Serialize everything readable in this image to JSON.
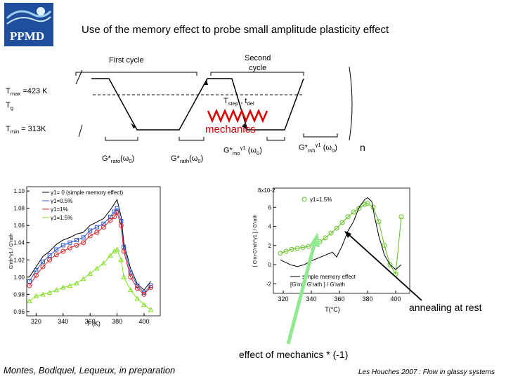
{
  "logo": {
    "text": "PPMD",
    "color": "#1f4e9c"
  },
  "slide_title": "Use of the memory effect to probe small amplitude plasticity effect",
  "protocol": {
    "first_cycle": "First  cycle",
    "second_cycle_1": "Second",
    "second_cycle_2": "cycle",
    "tmax": {
      "pre": "T",
      "sub": "max",
      "post": " =423 K"
    },
    "tg": {
      "pre": "T",
      "sub": "g"
    },
    "tmin": {
      "pre": "T",
      "sub": "min",
      "post": " = 313K"
    },
    "tstep": {
      "pre": "T",
      "sub": "step",
      "mid": " , t",
      "sub2": "del"
    },
    "mechanics": "mechanics",
    "g_rato": {
      "pre": "G*",
      "sub": "rato",
      "post": "(ω",
      "sub2": "0",
      "post2": ")"
    },
    "g_rath": {
      "pre": "G*",
      "sub": "rath",
      "post": "(ω",
      "sub2": "0",
      "post2": ")"
    },
    "g_mo": {
      "pre": "G*",
      "sub": "mo",
      "sup": "γ1",
      "post": " (ω",
      "sub2": "0",
      "post2": ")"
    },
    "g_mh": {
      "pre": "G*",
      "sub": "mh",
      "sup": "γ1",
      "post": " (ω",
      "sub2": "0",
      "post2": ")"
    },
    "n_label": "n"
  },
  "annotations": {
    "annealing": "annealing at rest",
    "effect": "effect of mechanics * (-1)",
    "authors": "Montes, Bodiquel, Lequeux, in preparation",
    "conference": "Les Houches 2007 : Flow in glassy systems"
  },
  "colors": {
    "mechanics": "#d80000",
    "arrow_green": "#90e890",
    "series_black": "#000000",
    "series_blue": "#2a55d0",
    "series_red": "#d82020",
    "series_green": "#80e020"
  },
  "chart_data": [
    {
      "type": "line",
      "xlabel": "T (K)",
      "ylabel": "G'rth^γ1 / G'rath",
      "xlim": [
        313,
        412
      ],
      "ylim": [
        0.955,
        1.105
      ],
      "xticks": [
        "320",
        "340",
        "360",
        "380",
        "400"
      ],
      "yticks": [
        "1.10",
        "1.08",
        "1.06",
        "1.04",
        "1.02",
        "1.00",
        "0.98",
        "0.96"
      ],
      "legend_position": "top-left",
      "series": [
        {
          "name": "γ1= 0 (simple memory effect)",
          "color": "#000000",
          "marker": "",
          "x": [
            315,
            320,
            325,
            330,
            335,
            340,
            345,
            350,
            355,
            360,
            365,
            370,
            375,
            378,
            380,
            383,
            385,
            390,
            395,
            400,
            405
          ],
          "y": [
            1.0,
            1.012,
            1.024,
            1.03,
            1.038,
            1.043,
            1.046,
            1.05,
            1.052,
            1.06,
            1.064,
            1.068,
            1.078,
            1.085,
            1.09,
            1.07,
            1.04,
            1.01,
            0.992,
            0.985,
            0.995
          ]
        },
        {
          "name": "γ1=0.5%",
          "color": "#2a55d0",
          "marker": "square",
          "x": [
            315,
            320,
            325,
            330,
            335,
            340,
            345,
            350,
            355,
            360,
            365,
            370,
            375,
            378,
            380,
            383,
            385,
            390,
            395,
            400,
            405
          ],
          "y": [
            0.995,
            1.008,
            1.018,
            1.025,
            1.032,
            1.037,
            1.04,
            1.043,
            1.046,
            1.054,
            1.058,
            1.062,
            1.07,
            1.076,
            1.08,
            1.065,
            1.035,
            1.005,
            0.99,
            0.982,
            0.99
          ]
        },
        {
          "name": "γ1=1%",
          "color": "#d82020",
          "marker": "circle",
          "x": [
            315,
            320,
            325,
            330,
            335,
            340,
            345,
            350,
            355,
            360,
            365,
            370,
            375,
            378,
            380,
            383,
            385,
            390,
            395,
            400,
            405
          ],
          "y": [
            0.99,
            1.002,
            1.012,
            1.02,
            1.026,
            1.03,
            1.034,
            1.037,
            1.04,
            1.048,
            1.052,
            1.058,
            1.066,
            1.07,
            1.075,
            1.06,
            1.03,
            1.0,
            0.987,
            0.98,
            0.988
          ]
        },
        {
          "name": "γ1=1.5%",
          "color": "#80e020",
          "marker": "triangle",
          "x": [
            315,
            320,
            325,
            330,
            335,
            340,
            345,
            350,
            355,
            360,
            365,
            370,
            375,
            378,
            380,
            383,
            385,
            390,
            395,
            400,
            405
          ],
          "y": [
            0.972,
            0.978,
            0.98,
            0.982,
            0.985,
            0.988,
            0.99,
            0.993,
            0.998,
            1.004,
            1.01,
            1.016,
            1.025,
            1.03,
            1.032,
            1.02,
            1.0,
            0.985,
            0.975,
            0.968,
            0.962
          ]
        }
      ]
    },
    {
      "type": "line",
      "title_prefix": "8x10",
      "title_exp": "-2",
      "xlabel": "T(°C)",
      "ylabel": "[ G'm-G'mh^γ1 ] / G'rath",
      "xlim": [
        313,
        410
      ],
      "ylim": [
        -0.03,
        0.08
      ],
      "xticks": [
        "320",
        "340",
        "360",
        "380",
        "400"
      ],
      "yticks": [
        "6",
        "4",
        "2",
        "0",
        "-2"
      ],
      "legend_position": "bottom-center",
      "series": [
        {
          "name": "γ1=1.5%",
          "color": "#60c020",
          "marker": "circle",
          "x": [
            318,
            322,
            326,
            330,
            334,
            338,
            342,
            346,
            350,
            354,
            358,
            362,
            366,
            370,
            374,
            378,
            380,
            384,
            388,
            392,
            396,
            400,
            404
          ],
          "y": [
            0.012,
            0.014,
            0.016,
            0.017,
            0.018,
            0.019,
            0.021,
            0.024,
            0.028,
            0.033,
            0.038,
            0.044,
            0.05,
            0.055,
            0.059,
            0.063,
            0.064,
            0.06,
            0.045,
            0.02,
            0.0,
            -0.01,
            0.05
          ]
        },
        {
          "name": "simple memory effect",
          "color": "#000000",
          "marker": "",
          "x": [
            318,
            325,
            330,
            335,
            340,
            345,
            350,
            355,
            358,
            362,
            366,
            370,
            374,
            378,
            380,
            383,
            385,
            388,
            392,
            396,
            400,
            404
          ],
          "y": [
            0.005,
            0.0,
            -0.002,
            0.0,
            0.004,
            0.007,
            0.01,
            0.013,
            0.008,
            0.02,
            0.035,
            0.045,
            0.06,
            0.068,
            0.07,
            0.066,
            0.05,
            0.03,
            0.01,
            0.0,
            -0.005,
            0.0
          ]
        }
      ],
      "legend_extra": "[G'm - G'rath ] / G'rath"
    }
  ]
}
